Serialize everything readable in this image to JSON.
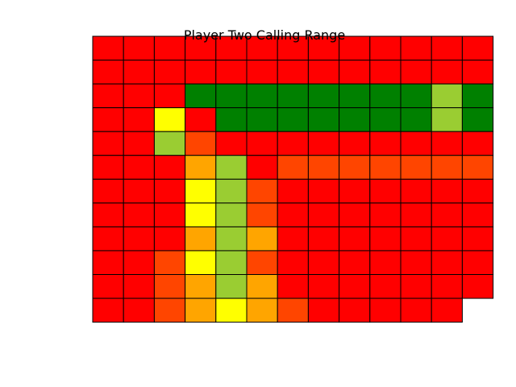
{
  "chart_data": {
    "type": "heatmap",
    "title": "Player Two Calling Range",
    "xlabel": "",
    "ylabel": "",
    "grid": true,
    "legend": "none",
    "palette": {
      "R": "#ff0000",
      "O": "#ff4500",
      "A": "#ffa500",
      "Y": "#ffff00",
      "L": "#9acd32",
      "G": "#008000"
    },
    "rows": [
      [
        "R",
        "R",
        "R",
        "R",
        "R",
        "R",
        "R",
        "R",
        "R",
        "R",
        "R",
        "R",
        "R"
      ],
      [
        "R",
        "R",
        "R",
        "R",
        "R",
        "R",
        "R",
        "R",
        "R",
        "R",
        "R",
        "R",
        "R"
      ],
      [
        "R",
        "R",
        "R",
        "G",
        "G",
        "G",
        "G",
        "G",
        "G",
        "G",
        "G",
        "L",
        "G"
      ],
      [
        "R",
        "R",
        "Y",
        "R",
        "G",
        "G",
        "G",
        "G",
        "G",
        "G",
        "G",
        "L",
        "G"
      ],
      [
        "R",
        "R",
        "L",
        "O",
        "R",
        "R",
        "R",
        "R",
        "R",
        "R",
        "R",
        "R",
        "R"
      ],
      [
        "R",
        "R",
        "R",
        "A",
        "L",
        "R",
        "O",
        "O",
        "O",
        "O",
        "O",
        "O",
        "O"
      ],
      [
        "R",
        "R",
        "R",
        "Y",
        "L",
        "O",
        "R",
        "R",
        "R",
        "R",
        "R",
        "R",
        "R"
      ],
      [
        "R",
        "R",
        "R",
        "Y",
        "L",
        "O",
        "R",
        "R",
        "R",
        "R",
        "R",
        "R",
        "R"
      ],
      [
        "R",
        "R",
        "R",
        "A",
        "L",
        "A",
        "R",
        "R",
        "R",
        "R",
        "R",
        "R",
        "R"
      ],
      [
        "R",
        "R",
        "O",
        "Y",
        "L",
        "O",
        "R",
        "R",
        "R",
        "R",
        "R",
        "R",
        "R"
      ],
      [
        "R",
        "R",
        "O",
        "A",
        "L",
        "A",
        "R",
        "R",
        "R",
        "R",
        "R",
        "R",
        "R"
      ],
      [
        "R",
        "R",
        "O",
        "A",
        "Y",
        "A",
        "O",
        "R",
        "R",
        "R",
        "R",
        "R",
        null
      ]
    ]
  }
}
